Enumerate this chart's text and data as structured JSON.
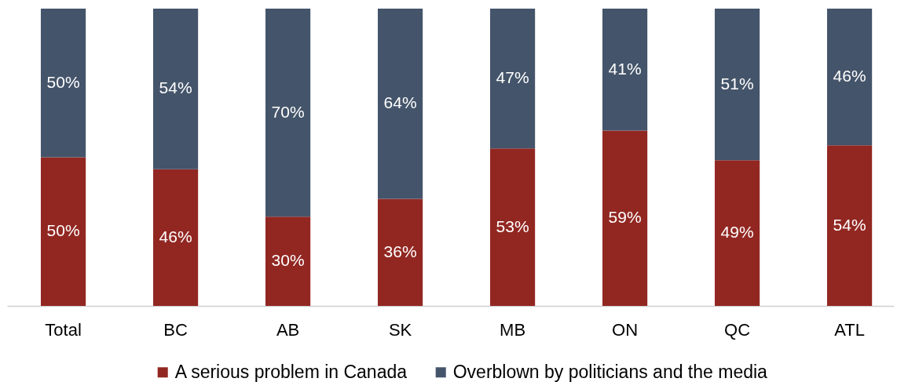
{
  "chart_data": {
    "type": "bar",
    "stacked": true,
    "tick_labels": "x",
    "legend": "bottom",
    "categories": [
      "Total",
      "BC",
      "AB",
      "SK",
      "MB",
      "ON",
      "QC",
      "ATL"
    ],
    "series": [
      {
        "name": "A serious problem in Canada",
        "color": "#922722",
        "values": [
          50,
          46,
          30,
          36,
          53,
          59,
          49,
          54
        ],
        "value_labels": [
          "50%",
          "46%",
          "30%",
          "36%",
          "53%",
          "59%",
          "49%",
          "54%"
        ]
      },
      {
        "name": "Overblown by politicians and the media",
        "color": "#44546a",
        "values": [
          50,
          54,
          70,
          64,
          47,
          41,
          51,
          46
        ],
        "value_labels": [
          "50%",
          "54%",
          "70%",
          "64%",
          "47%",
          "41%",
          "51%",
          "46%"
        ]
      }
    ]
  }
}
